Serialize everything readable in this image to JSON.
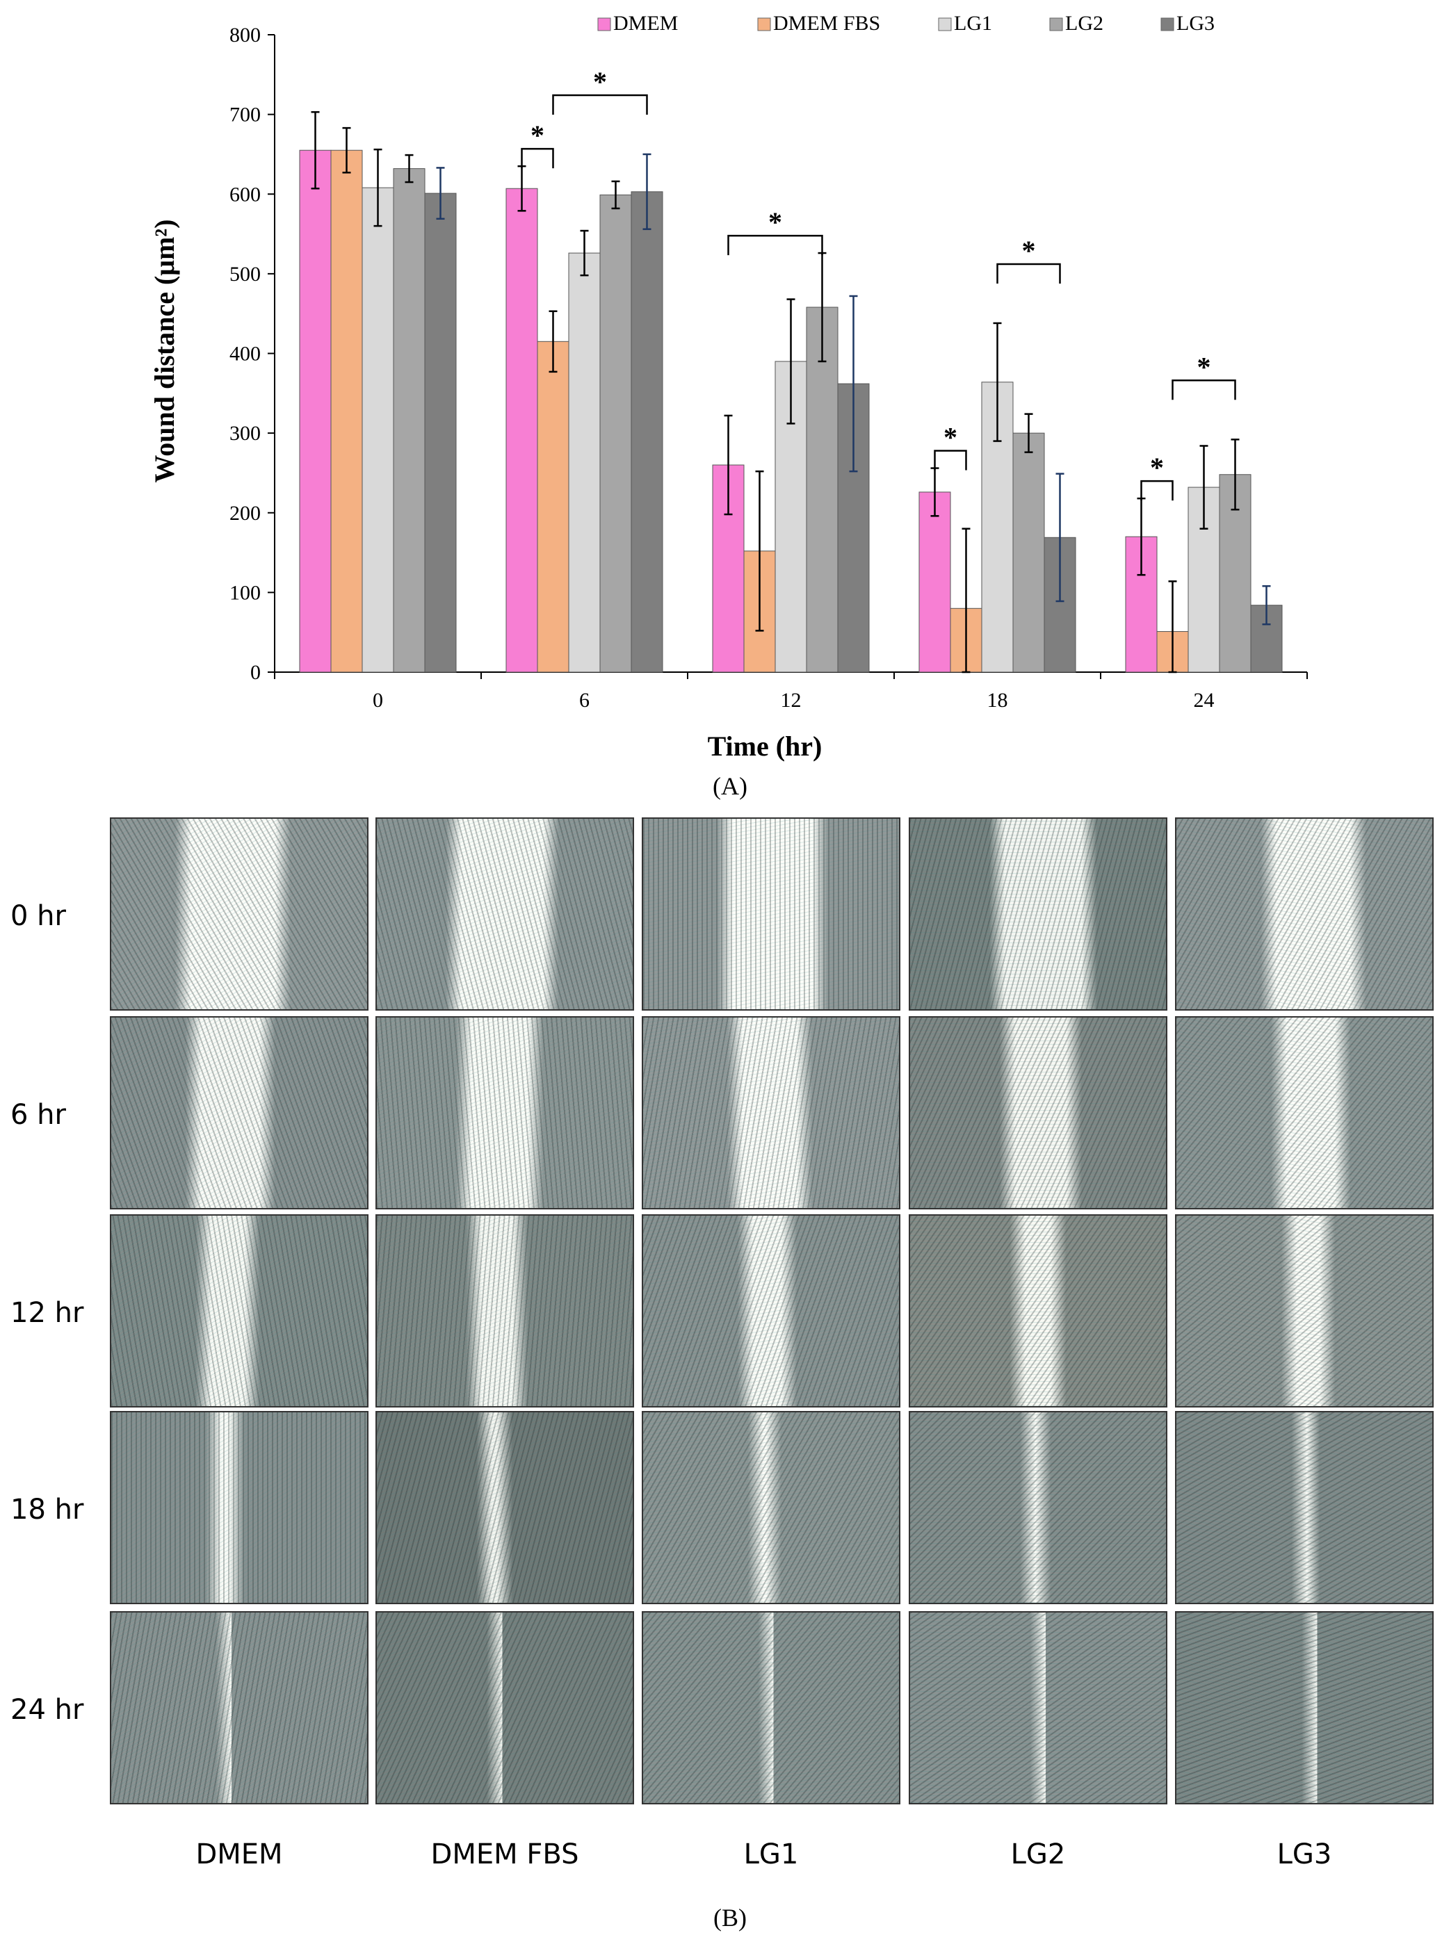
{
  "chart_data": {
    "type": "bar",
    "title": "",
    "xlabel": "Time (hr)",
    "ylabel": "Wound distance  (μm²)",
    "ylim": [
      0,
      800
    ],
    "yticks": [
      0,
      100,
      200,
      300,
      400,
      500,
      600,
      700,
      800
    ],
    "categories": [
      "0",
      "6",
      "12",
      "18",
      "24"
    ],
    "legend_position": "top",
    "series": [
      {
        "name": "DMEM",
        "color": "#f77fd3",
        "values": [
          655,
          607,
          260,
          226,
          170
        ],
        "errors": [
          48,
          28,
          62,
          30,
          48
        ],
        "error_color": "#000000"
      },
      {
        "name": "DMEM FBS",
        "color": "#f4b183",
        "values": [
          655,
          415,
          152,
          80,
          51
        ],
        "errors": [
          28,
          38,
          100,
          100,
          63
        ],
        "error_color": "#000000"
      },
      {
        "name": "LG1",
        "color": "#d9d9d9",
        "values": [
          608,
          526,
          390,
          364,
          232
        ],
        "errors": [
          48,
          28,
          78,
          74,
          52
        ],
        "error_color": "#000000"
      },
      {
        "name": "LG2",
        "color": "#a6a6a6",
        "values": [
          632,
          599,
          458,
          300,
          248
        ],
        "errors": [
          17,
          17,
          68,
          24,
          44
        ],
        "error_color": "#000000"
      },
      {
        "name": "LG3",
        "color": "#7f7f7f",
        "values": [
          601,
          603,
          362,
          169,
          84
        ],
        "errors": [
          32,
          47,
          110,
          80,
          24
        ],
        "error_color": "#1f3864"
      }
    ],
    "significance": [
      {
        "category": "6",
        "from_series": 0,
        "to_series": 1,
        "label": "*"
      },
      {
        "category": "6",
        "from_series": 1,
        "to_series": 4,
        "label": "*"
      },
      {
        "category": "12",
        "from_series": 0,
        "to_series": 3,
        "label": "*"
      },
      {
        "category": "18",
        "from_series": 0,
        "to_series": 1,
        "label": "*"
      },
      {
        "category": "18",
        "from_series": 2,
        "to_series": 4,
        "label": "*"
      },
      {
        "category": "24",
        "from_series": 0,
        "to_series": 1,
        "label": "*"
      },
      {
        "category": "24",
        "from_series": 1,
        "to_series": 3,
        "label": "*"
      }
    ]
  },
  "panel_a_label": "(A)",
  "panel_b_label": "(B)",
  "micrographs": {
    "rows": [
      "0 hr",
      "6 hr",
      "12 hr",
      "18 hr",
      "24 hr"
    ],
    "columns": [
      "DMEM",
      "DMEM FBS",
      "LG1",
      "LG2",
      "LG3"
    ]
  }
}
